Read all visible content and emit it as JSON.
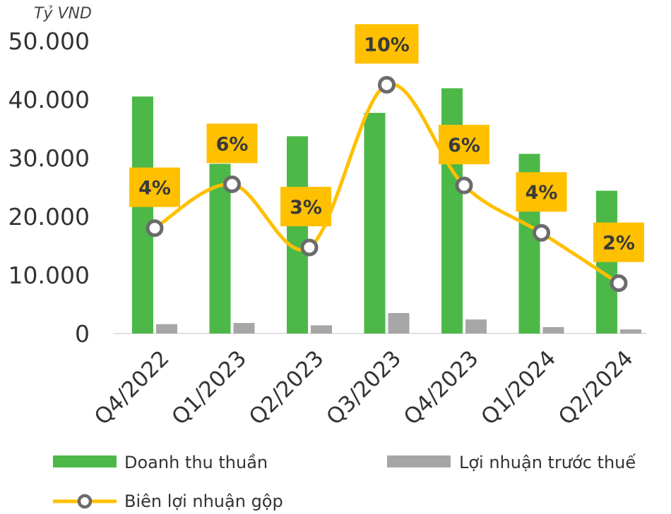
{
  "chart_data": {
    "type": "bar",
    "unit_label": "Tỷ VND",
    "categories": [
      "Q4/2022",
      "Q1/2023",
      "Q2/2023",
      "Q3/2023",
      "Q4/2023",
      "Q1/2024",
      "Q2/2024"
    ],
    "y_ticks": [
      "0",
      "10.000",
      "20.000",
      "30.000",
      "40.000",
      "50.000"
    ],
    "ylim": [
      0,
      50000
    ],
    "grid": false,
    "series": [
      {
        "name": "Doanh thu thuần",
        "type": "bar",
        "color": "#4cb848",
        "values": [
          40500,
          29000,
          33700,
          37700,
          41900,
          30700,
          24400
        ]
      },
      {
        "name": "Lợi nhuận trước thuế",
        "type": "bar",
        "color": "#a6a6a6",
        "values": [
          1600,
          1800,
          1400,
          3500,
          2400,
          1100,
          700
        ]
      },
      {
        "name": "Biên lợi nhuận gộp",
        "type": "line",
        "color": "#ffc000",
        "values": [
          4,
          6,
          3,
          10,
          6,
          4,
          2
        ],
        "labels": [
          "4%",
          "6%",
          "3%",
          "10%",
          "6%",
          "4%",
          "2%"
        ],
        "plotted_at": [
          18000,
          25500,
          14700,
          42500,
          25300,
          17200,
          8600
        ]
      }
    ],
    "legend_position": "bottom"
  }
}
